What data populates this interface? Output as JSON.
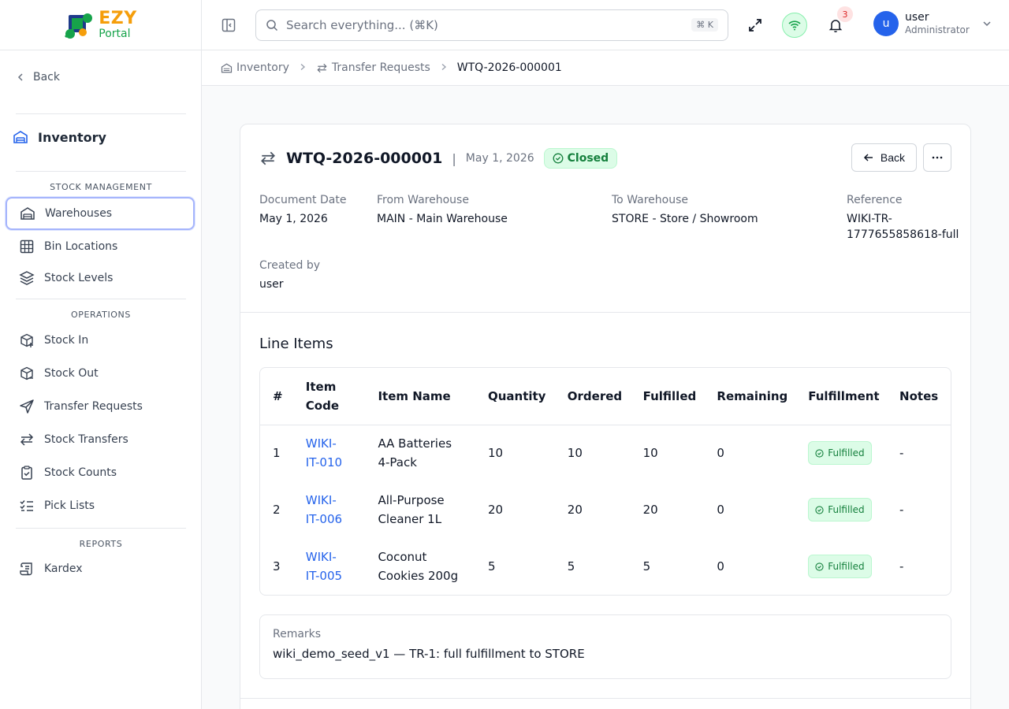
{
  "brand": {
    "name_top": "EZY",
    "name_bottom": "Portal"
  },
  "sidebar": {
    "back_label": "Back",
    "module_title": "Inventory",
    "sections": [
      {
        "label": "STOCK MANAGEMENT"
      },
      {
        "label": "OPERATIONS"
      },
      {
        "label": "REPORTS"
      }
    ],
    "items": [
      {
        "label": "Warehouses",
        "icon": "warehouse-icon",
        "active": true
      },
      {
        "label": "Bin Locations",
        "icon": "grid-icon"
      },
      {
        "label": "Stock Levels",
        "icon": "layers-icon"
      },
      {
        "label": "Stock In",
        "icon": "package-plus-icon"
      },
      {
        "label": "Stock Out",
        "icon": "package-minus-icon"
      },
      {
        "label": "Transfer Requests",
        "icon": "send-icon"
      },
      {
        "label": "Stock Transfers",
        "icon": "arrows-left-right-icon"
      },
      {
        "label": "Stock Counts",
        "icon": "clipboard-check-icon"
      },
      {
        "label": "Pick Lists",
        "icon": "list-checks-icon"
      },
      {
        "label": "Kardex",
        "icon": "scroll-icon"
      }
    ]
  },
  "header": {
    "search_placeholder": "Search everything... (⌘K)",
    "search_shortcut": "⌘ K",
    "notification_count": "3",
    "user_name": "user",
    "user_role": "Administrator",
    "avatar_initial": "u"
  },
  "breadcrumb": {
    "items": [
      "Inventory",
      "Transfer Requests",
      "WTQ-2026-000001"
    ]
  },
  "document": {
    "number": "WTQ-2026-000001",
    "date": "May 1, 2026",
    "status": "Closed",
    "back_label": "Back",
    "fields": {
      "document_date_label": "Document Date",
      "document_date": "May 1, 2026",
      "from_label": "From Warehouse",
      "from": "MAIN - Main Warehouse",
      "to_label": "To Warehouse",
      "to": "STORE - Store / Showroom",
      "reference_label": "Reference",
      "reference_line1": "WIKI-TR-",
      "reference_line2": "1777655858618-full",
      "created_by_label": "Created by",
      "created_by": "user"
    }
  },
  "line_items": {
    "title": "Line Items",
    "columns": {
      "num": "#",
      "code_1": "Item",
      "code_2": "Code",
      "name": "Item Name",
      "quantity": "Quantity",
      "ordered": "Ordered",
      "fulfilled": "Fulfilled",
      "remaining": "Remaining",
      "fulfillment": "Fulfillment",
      "notes": "Notes"
    },
    "rows": [
      {
        "num": "1",
        "code_1": "WIKI-",
        "code_2": "IT-010",
        "name_1": "AA Batteries",
        "name_2": "4-Pack",
        "quantity": "10",
        "ordered": "10",
        "fulfilled": "10",
        "remaining": "0",
        "status": "Fulfilled",
        "notes": "-"
      },
      {
        "num": "2",
        "code_1": "WIKI-",
        "code_2": "IT-006",
        "name_1": "All-Purpose",
        "name_2": "Cleaner 1L",
        "quantity": "20",
        "ordered": "20",
        "fulfilled": "20",
        "remaining": "0",
        "status": "Fulfilled",
        "notes": "-"
      },
      {
        "num": "3",
        "code_1": "WIKI-",
        "code_2": "IT-005",
        "name_1": "Coconut",
        "name_2": "Cookies 200g",
        "quantity": "5",
        "ordered": "5",
        "fulfilled": "5",
        "remaining": "0",
        "status": "Fulfilled",
        "notes": "-"
      }
    ]
  },
  "remarks": {
    "label": "Remarks",
    "text": "wiki_demo_seed_v1 — TR-1: full fulfillment to STORE"
  },
  "colors": {
    "accent": "#2563eb",
    "success": "#15803d",
    "success_bg": "#dcfce7",
    "brand_orange": "#f59e0b",
    "brand_green": "#16a34a"
  }
}
